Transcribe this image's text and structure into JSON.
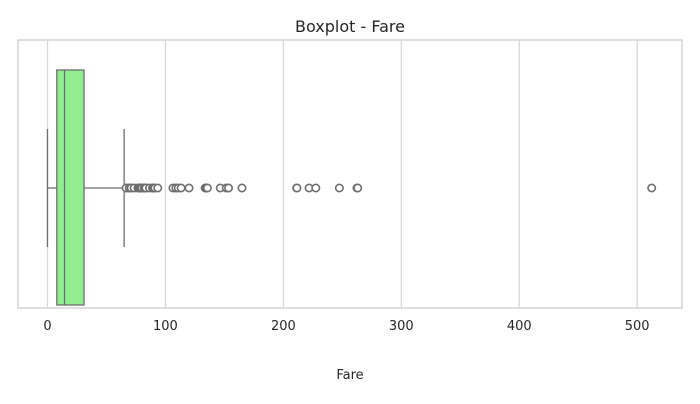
{
  "chart_data": {
    "type": "boxplot",
    "title": "Boxplot - Fare",
    "xlabel": "Fare",
    "ylabel": "",
    "orientation": "horizontal",
    "xlim": [
      -25,
      538
    ],
    "xticks": [
      0,
      100,
      200,
      300,
      400,
      500
    ],
    "xtick_labels": [
      "0",
      "100",
      "200",
      "300",
      "400",
      "500"
    ],
    "grid": true,
    "colors": {
      "box_fill": "#90ee90",
      "line": "#6e6e6e",
      "grid": "#d8d8d8",
      "frame": "#cccccc",
      "text": "#262626"
    },
    "box": {
      "whisker_low": 0,
      "q1": 7.9,
      "median": 14.45,
      "q3": 31,
      "whisker_high": 65
    },
    "outliers": [
      66.6,
      69.3,
      69.55,
      71,
      73.5,
      76.7,
      77.3,
      78.3,
      79.2,
      79.65,
      80,
      81.9,
      82.2,
      83.2,
      83.5,
      86.5,
      89.1,
      90,
      91.1,
      93.5,
      106.4,
      108.9,
      110.9,
      113.3,
      120,
      133.7,
      134.5,
      135.6,
      146.5,
      151.6,
      153.5,
      164.9,
      211.3,
      211.5,
      221.8,
      227.5,
      247.5,
      262.4,
      263,
      512.3
    ]
  }
}
